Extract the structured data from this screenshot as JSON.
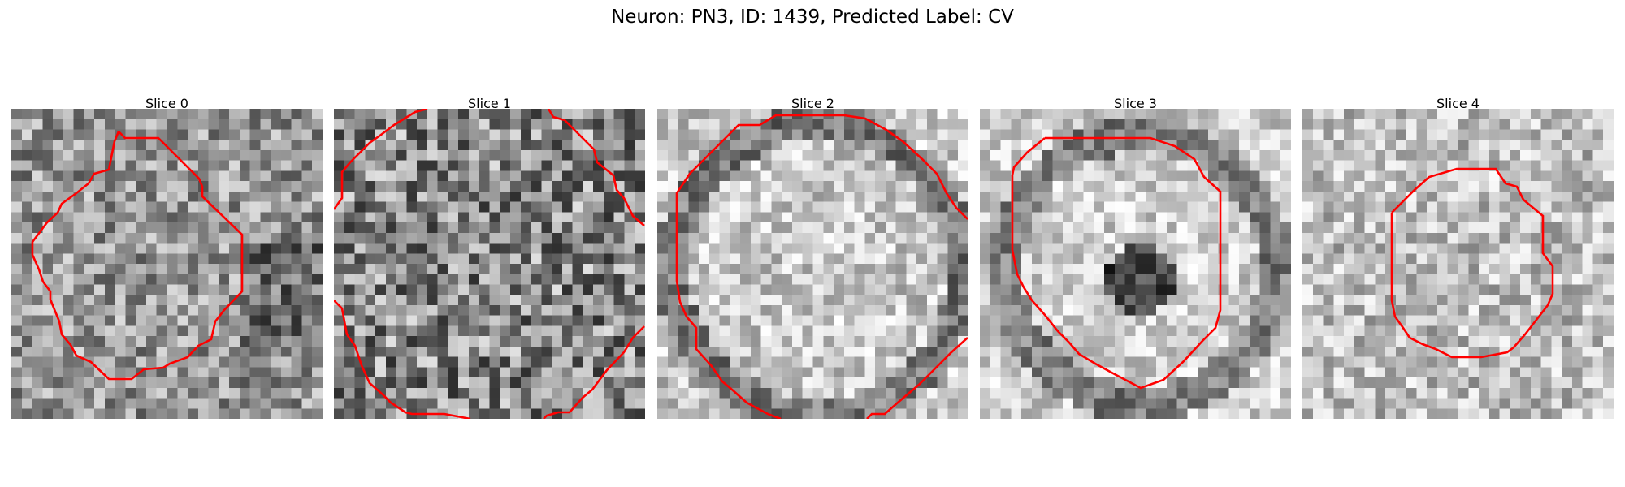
{
  "figure": {
    "title": "Neuron: PN3, ID: 1439, Predicted Label: CV",
    "contour_color": "#ff0000",
    "panels": [
      {
        "label": "Slice 0"
      },
      {
        "label": "Slice 1"
      },
      {
        "label": "Slice 2"
      },
      {
        "label": "Slice 3"
      },
      {
        "label": "Slice 4"
      }
    ]
  }
}
